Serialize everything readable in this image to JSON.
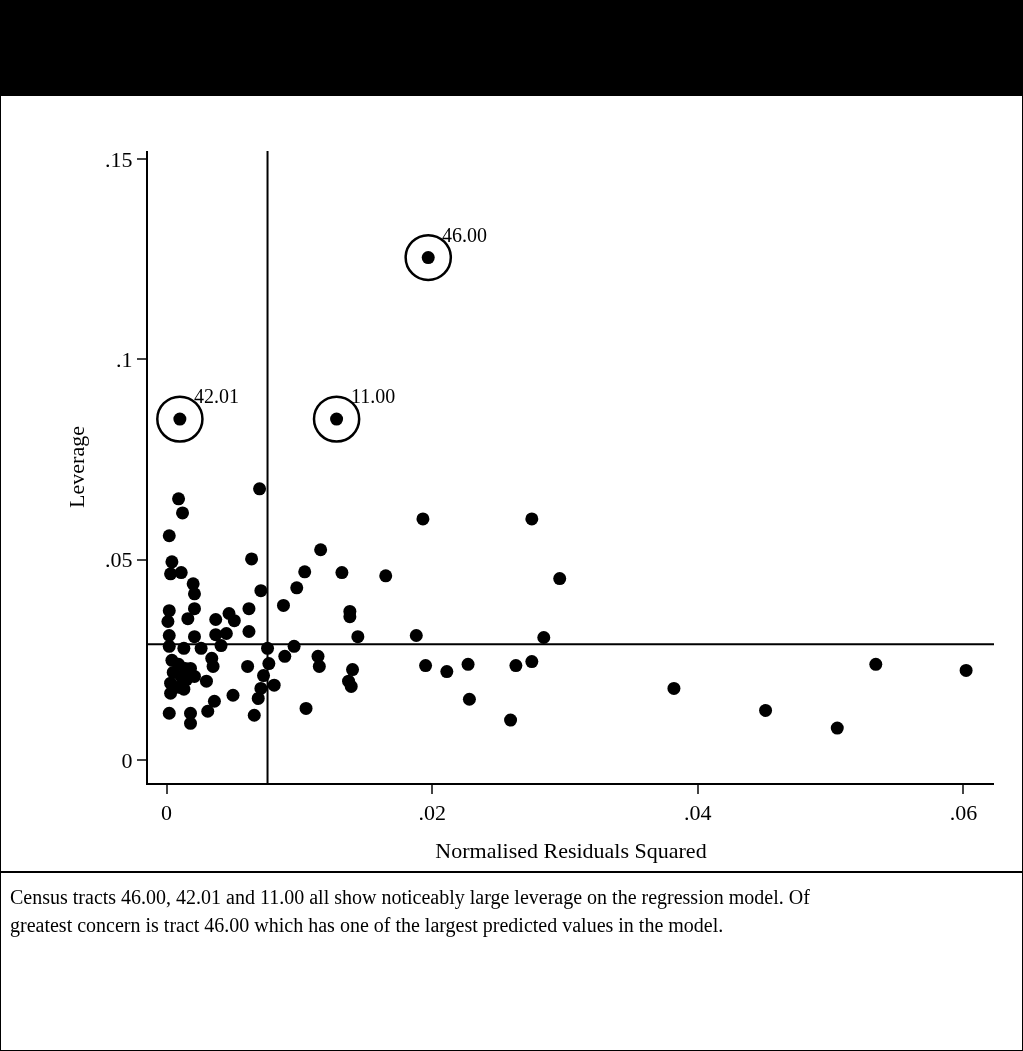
{
  "chart_data": {
    "type": "scatter",
    "xlabel": "Normalised Residuals Squared",
    "ylabel": "Leverage",
    "xlim": [
      -0.0014,
      0.0623
    ],
    "ylim": [
      -0.0057,
      0.152
    ],
    "xticks": [
      {
        "value": 0,
        "label": "0"
      },
      {
        "value": 0.02,
        "label": ".02"
      },
      {
        "value": 0.04,
        "label": ".04"
      },
      {
        "value": 0.06,
        "label": ".06"
      }
    ],
    "yticks": [
      {
        "value": 0,
        "label": "0"
      },
      {
        "value": 0.05,
        "label": ".05"
      },
      {
        "value": 0.1,
        "label": ".1"
      },
      {
        "value": 0.15,
        "label": ".15"
      }
    ],
    "grid": false,
    "marker": "circle",
    "series": [
      {
        "color": "#000000",
        "x": [
          0.0197,
          0.001,
          0.0128,
          0.007,
          0.0009,
          0.0012,
          0.0002,
          0.0064,
          0.0004,
          0.0003,
          0.0011,
          0.002,
          0.0021,
          0.0071,
          0.0002,
          0.0021,
          0.0062,
          0.0047,
          0.0037,
          0.0051,
          0.0001,
          0.0016,
          0.0062,
          0.0037,
          0.0045,
          0.0002,
          0.0021,
          0.0041,
          0.0002,
          0.0013,
          0.0026,
          0.0076,
          0.0096,
          0.0089,
          0.0034,
          0.0061,
          0.0077,
          0.0004,
          0.0009,
          0.0014,
          0.0005,
          0.0011,
          0.0015,
          0.0003,
          0.0009,
          0.0013,
          0.0003,
          0.0018,
          0.0021,
          0.003,
          0.0035,
          0.0073,
          0.0081,
          0.0071,
          0.005,
          0.0036,
          0.0031,
          0.0069,
          0.0002,
          0.0018,
          0.0018,
          0.0066,
          0.0105,
          0.0193,
          0.0275,
          0.0116,
          0.0104,
          0.0132,
          0.0165,
          0.0098,
          0.0088,
          0.0138,
          0.0138,
          0.0144,
          0.0188,
          0.0284,
          0.0114,
          0.0115,
          0.014,
          0.0137,
          0.0139,
          0.0195,
          0.0211,
          0.0227,
          0.0263,
          0.0275,
          0.0228,
          0.0259,
          0.0296,
          0.0382,
          0.0451,
          0.0505,
          0.0534,
          0.0602
        ],
        "values": [
          0.1254,
          0.0851,
          0.0851,
          0.0677,
          0.0652,
          0.0617,
          0.056,
          0.0502,
          0.0495,
          0.0465,
          0.0468,
          0.044,
          0.0415,
          0.0423,
          0.0373,
          0.0378,
          0.0378,
          0.0366,
          0.0351,
          0.0348,
          0.0346,
          0.0353,
          0.0321,
          0.0313,
          0.0316,
          0.0311,
          0.0308,
          0.0286,
          0.0284,
          0.0279,
          0.0279,
          0.0279,
          0.0284,
          0.0259,
          0.0254,
          0.0234,
          0.0241,
          0.0249,
          0.0239,
          0.0229,
          0.0219,
          0.0209,
          0.0201,
          0.0192,
          0.0182,
          0.0177,
          0.0167,
          0.0229,
          0.0209,
          0.0197,
          0.0234,
          0.0211,
          0.0187,
          0.0179,
          0.0162,
          0.0147,
          0.0122,
          0.0154,
          0.0117,
          0.0117,
          0.0092,
          0.0112,
          0.0129,
          0.0602,
          0.0602,
          0.0525,
          0.047,
          0.0468,
          0.046,
          0.043,
          0.0386,
          0.0371,
          0.0358,
          0.0308,
          0.0311,
          0.0306,
          0.0259,
          0.0234,
          0.0226,
          0.0197,
          0.0184,
          0.0236,
          0.0221,
          0.0239,
          0.0236,
          0.0246,
          0.0152,
          0.01,
          0.0453,
          0.0179,
          0.0124,
          0.008,
          0.0239,
          0.0224
        ]
      }
    ],
    "ref_lines": [
      {
        "axis": "x",
        "value": 0.0076,
        "color": "#000000"
      },
      {
        "axis": "y",
        "value": 0.0289,
        "color": "#000000"
      }
    ],
    "annotations": [
      {
        "text": "46.00",
        "x": 0.0197,
        "y": 0.1254
      },
      {
        "text": "42.01",
        "x": 0.001,
        "y": 0.0851
      },
      {
        "text": "11.00",
        "x": 0.0128,
        "y": 0.0851
      },
      "Census tracts 46.00, 42.01 and 11.00 all show noticeably large leverage on the regression model.  Of greatest concern is tract 46.00 which has one of the largest predicted values in the model."
    ]
  }
}
